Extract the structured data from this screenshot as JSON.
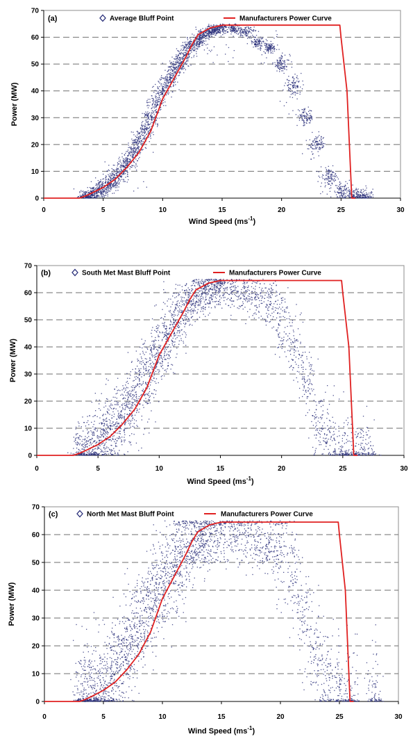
{
  "colors": {
    "scatter": "#2a2f7a",
    "curve": "#e02020",
    "grid": "#6e6e6e"
  },
  "chart_data": [
    {
      "type": "scatter",
      "panel_label": "(a)",
      "title": "",
      "xlabel": "Wind Speed (ms",
      "xlabel_sup": "-1",
      "xlabel_end": ")",
      "ylabel": "Power (MW)",
      "xlim": [
        0,
        30
      ],
      "ylim": [
        0,
        70
      ],
      "x_ticks": [
        "0",
        "5",
        "10",
        "15",
        "20",
        "25",
        "30"
      ],
      "y_ticks": [
        "0",
        "10",
        "20",
        "30",
        "40",
        "50",
        "60",
        "70"
      ],
      "grid": "horizontal dashed",
      "legend_placement": "top",
      "series": [
        {
          "name": "Average Bluff Point",
          "marker": "diamond-open",
          "spread": 1.6,
          "points": [
            [
              3.5,
              0.3
            ],
            [
              4.0,
              1.2
            ],
            [
              4.5,
              2.4
            ],
            [
              5.0,
              3.8
            ],
            [
              5.5,
              5.5
            ],
            [
              6.0,
              7.5
            ],
            [
              6.5,
              10
            ],
            [
              7.0,
              13
            ],
            [
              7.5,
              17
            ],
            [
              8.0,
              21
            ],
            [
              8.5,
              25
            ],
            [
              9.0,
              30
            ],
            [
              9.5,
              35
            ],
            [
              10.0,
              40
            ],
            [
              10.5,
              44
            ],
            [
              11.0,
              48
            ],
            [
              11.5,
              51
            ],
            [
              12.0,
              54
            ],
            [
              12.5,
              57
            ],
            [
              13.0,
              59
            ],
            [
              13.5,
              61
            ],
            [
              14.0,
              62
            ],
            [
              14.5,
              63
            ],
            [
              15.0,
              63.5
            ],
            [
              16.0,
              63
            ],
            [
              17.0,
              62
            ],
            [
              18.0,
              58
            ],
            [
              19.0,
              56
            ],
            [
              20.0,
              50
            ],
            [
              21.0,
              42
            ],
            [
              22.0,
              30
            ],
            [
              23.0,
              20
            ],
            [
              24.0,
              8
            ],
            [
              25.0,
              3
            ],
            [
              26.0,
              1
            ],
            [
              27.0,
              0.5
            ],
            [
              8.0,
              4
            ],
            [
              15.0,
              52
            ],
            [
              16.0,
              55
            ],
            [
              17.5,
              60
            ],
            [
              18.5,
              51
            ],
            [
              14.5,
              55
            ],
            [
              13.5,
              57
            ],
            [
              19.5,
              61
            ],
            [
              20.5,
              35
            ],
            [
              22.5,
              15
            ],
            [
              23.5,
              2
            ]
          ]
        },
        {
          "name": "Manufacturers Power Curve",
          "type": "line",
          "points": [
            [
              0,
              0
            ],
            [
              3,
              0
            ],
            [
              3.5,
              0.8
            ],
            [
              4,
              1.8
            ],
            [
              5,
              4
            ],
            [
              6,
              7
            ],
            [
              7,
              11.5
            ],
            [
              8,
              17
            ],
            [
              9,
              25
            ],
            [
              10,
              37
            ],
            [
              11,
              45
            ],
            [
              12,
              53
            ],
            [
              12.5,
              57.5
            ],
            [
              13,
              61
            ],
            [
              14,
              63.5
            ],
            [
              15,
              64.5
            ],
            [
              24.9,
              64.5
            ],
            [
              25,
              60
            ],
            [
              25.5,
              40
            ],
            [
              25.9,
              0
            ],
            [
              26.2,
              0
            ]
          ]
        }
      ]
    },
    {
      "type": "scatter",
      "panel_label": "(b)",
      "title": "",
      "xlabel": "Wind Speed (ms",
      "xlabel_sup": "-1",
      "xlabel_end": ")",
      "ylabel": "Power (MW)",
      "xlim": [
        0,
        30
      ],
      "ylim": [
        0,
        70
      ],
      "x_ticks": [
        "0",
        "5",
        "10",
        "15",
        "20",
        "25",
        "30"
      ],
      "y_ticks": [
        "0",
        "10",
        "20",
        "30",
        "40",
        "50",
        "60",
        "70"
      ],
      "grid": "horizontal dashed",
      "legend_placement": "top",
      "series": [
        {
          "name": "South Met Mast Bluff Point",
          "marker": "diamond-open",
          "spread": 6.5,
          "points": [
            [
              3.5,
              1
            ],
            [
              4.0,
              2
            ],
            [
              4.5,
              3
            ],
            [
              5.0,
              5
            ],
            [
              5.5,
              7
            ],
            [
              6.0,
              9
            ],
            [
              6.5,
              12
            ],
            [
              7.0,
              15
            ],
            [
              7.5,
              18
            ],
            [
              8.0,
              22
            ],
            [
              8.5,
              26
            ],
            [
              9.0,
              30
            ],
            [
              9.5,
              34
            ],
            [
              10.0,
              38
            ],
            [
              10.5,
              42
            ],
            [
              11.0,
              46
            ],
            [
              11.5,
              50
            ],
            [
              12.0,
              53
            ],
            [
              12.5,
              56
            ],
            [
              13.0,
              58
            ],
            [
              13.5,
              60
            ],
            [
              14.0,
              61
            ],
            [
              14.5,
              62
            ],
            [
              15.0,
              62
            ],
            [
              16.0,
              61
            ],
            [
              17.0,
              60
            ],
            [
              18.0,
              58
            ],
            [
              19.0,
              56
            ],
            [
              20.0,
              50
            ],
            [
              21.0,
              42
            ],
            [
              22.0,
              28
            ],
            [
              23.0,
              12
            ],
            [
              24.0,
              5
            ],
            [
              25.0,
              2
            ],
            [
              26.0,
              1
            ],
            [
              27.0,
              0.5
            ]
          ]
        },
        {
          "name": "Manufacturers Power Curve",
          "type": "line",
          "points": [
            [
              0,
              0
            ],
            [
              3,
              0
            ],
            [
              3.5,
              0.8
            ],
            [
              4,
              1.8
            ],
            [
              5,
              4
            ],
            [
              6,
              7
            ],
            [
              7,
              11.5
            ],
            [
              8,
              17
            ],
            [
              9,
              25
            ],
            [
              10,
              37
            ],
            [
              11,
              45
            ],
            [
              12,
              53
            ],
            [
              12.5,
              57.5
            ],
            [
              13,
              61
            ],
            [
              14,
              63.5
            ],
            [
              15,
              64.5
            ],
            [
              24.9,
              64.5
            ],
            [
              25,
              60
            ],
            [
              25.5,
              40
            ],
            [
              25.9,
              0
            ],
            [
              26.2,
              0
            ]
          ]
        }
      ]
    },
    {
      "type": "scatter",
      "panel_label": "(c)",
      "title": "",
      "xlabel": "Wind Speed (ms",
      "xlabel_sup": "-1",
      "xlabel_end": ")",
      "ylabel": "Power (MW)",
      "xlim": [
        0,
        30
      ],
      "ylim": [
        0,
        70
      ],
      "x_ticks": [
        "0",
        "5",
        "10",
        "15",
        "20",
        "25",
        "30"
      ],
      "y_ticks": [
        "0",
        "10",
        "20",
        "30",
        "40",
        "50",
        "60",
        "70"
      ],
      "grid": "horizontal dashed",
      "legend_placement": "top",
      "series": [
        {
          "name": "North Met Mast Bluff Point",
          "marker": "diamond-open",
          "spread": 9,
          "points": [
            [
              3.0,
              1
            ],
            [
              3.5,
              1.5
            ],
            [
              4.0,
              2.5
            ],
            [
              4.5,
              4
            ],
            [
              5.0,
              6
            ],
            [
              5.5,
              9
            ],
            [
              6.0,
              12
            ],
            [
              6.5,
              16
            ],
            [
              7.0,
              20
            ],
            [
              7.5,
              24
            ],
            [
              8.0,
              28
            ],
            [
              8.5,
              32
            ],
            [
              9.0,
              36
            ],
            [
              9.5,
              40
            ],
            [
              10.0,
              43
            ],
            [
              10.5,
              46
            ],
            [
              11.0,
              49
            ],
            [
              11.5,
              52
            ],
            [
              12.0,
              54
            ],
            [
              12.5,
              56
            ],
            [
              13.0,
              58
            ],
            [
              13.5,
              59
            ],
            [
              14.0,
              60
            ],
            [
              15.0,
              61
            ],
            [
              16.0,
              61
            ],
            [
              17.0,
              60
            ],
            [
              18.0,
              58
            ],
            [
              19.0,
              57
            ],
            [
              20.0,
              53
            ],
            [
              21.0,
              45
            ],
            [
              22.0,
              32
            ],
            [
              23.0,
              18
            ],
            [
              24.0,
              8
            ],
            [
              25.0,
              3
            ],
            [
              26.0,
              1
            ],
            [
              28.0,
              0.5
            ]
          ]
        },
        {
          "name": "Manufacturers Power Curve",
          "type": "line",
          "points": [
            [
              0,
              0
            ],
            [
              3,
              0
            ],
            [
              3.5,
              0.8
            ],
            [
              4,
              1.8
            ],
            [
              5,
              4
            ],
            [
              6,
              7
            ],
            [
              7,
              11.5
            ],
            [
              8,
              17
            ],
            [
              9,
              25
            ],
            [
              10,
              37
            ],
            [
              11,
              45
            ],
            [
              12,
              53
            ],
            [
              12.5,
              57.5
            ],
            [
              13,
              61
            ],
            [
              14,
              63.5
            ],
            [
              15,
              64.5
            ],
            [
              24.9,
              64.5
            ],
            [
              25,
              60
            ],
            [
              25.5,
              40
            ],
            [
              25.9,
              0
            ],
            [
              26.2,
              0
            ]
          ]
        }
      ]
    }
  ]
}
